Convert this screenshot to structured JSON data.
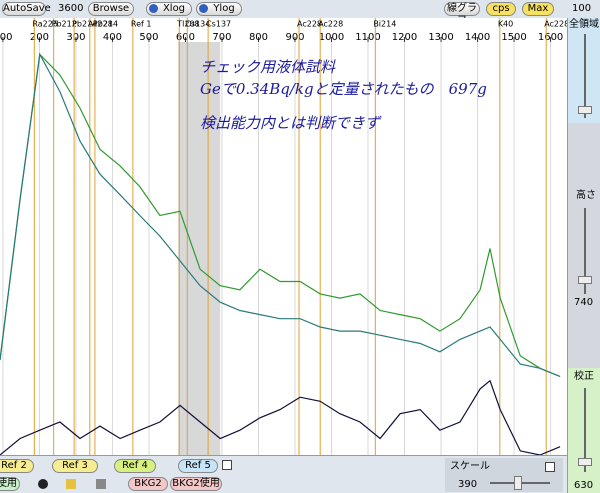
{
  "toolbar": {
    "autosave": "AutoSave",
    "time": 3600,
    "browse": "Browse",
    "xlog": "Xlog",
    "ylog": "Ylog",
    "line_graph": "線グラフ",
    "cps": "cps",
    "max": "Max",
    "max_value": 100
  },
  "chart_data": {
    "type": "line",
    "annotations": [
      "チェック用液体試料",
      "Geで0.34Bq/kgと定量されたもの　697g",
      "検出能力内とは判断できず"
    ],
    "x": [
      92,
      147,
      201,
      256,
      311,
      366,
      421,
      475,
      530,
      585,
      640,
      695,
      749,
      804,
      859,
      914,
      969,
      1023,
      1078,
      1133,
      1188,
      1243,
      1297,
      1352,
      1407,
      1434,
      1462,
      1517,
      1571,
      1626
    ],
    "xlim": [
      92,
      1645
    ],
    "xticks": [
      100,
      200,
      300,
      400,
      500,
      600,
      700,
      800,
      900,
      1000,
      1100,
      1200,
      1300,
      1400,
      1500,
      1600
    ],
    "ylim": [
      0,
      100
    ],
    "grid": true,
    "series": [
      {
        "color": "#2f9a2f",
        "values": [
          23,
          62,
          97,
          92,
          84,
          74,
          70,
          65,
          58,
          59,
          45,
          41,
          40,
          45,
          42,
          42,
          39,
          38,
          39,
          35,
          34,
          33,
          30,
          33,
          40,
          50,
          38,
          24,
          21,
          19
        ]
      },
      {
        "color": "#2a7a7a",
        "values": [
          23,
          62,
          97,
          88,
          76,
          68,
          63,
          58,
          53,
          47,
          41,
          37,
          35,
          34,
          33,
          33,
          31,
          30,
          30,
          29,
          28,
          27,
          25,
          28,
          30,
          31,
          28,
          22,
          21,
          19
        ]
      },
      {
        "color": "#10103a",
        "values": [
          0,
          4,
          6,
          8,
          4,
          7,
          4,
          6,
          8,
          12,
          8,
          4,
          6,
          9,
          11,
          14,
          13,
          10,
          8,
          4,
          10,
          11,
          6,
          8,
          16,
          18,
          11,
          1,
          0,
          2
        ]
      }
    ],
    "markers": [
      {
        "label": "Ra226",
        "energy": 186
      },
      {
        "label": "Pb212",
        "energy": 239
      },
      {
        "label": "Pb214",
        "energy": 295
      },
      {
        "label": "Ac228",
        "energy": 338
      },
      {
        "label": "Pb214",
        "energy": 352
      },
      {
        "label": "Ref 1",
        "energy": 456
      },
      {
        "label": "Tl208",
        "energy": 583
      },
      {
        "label": "Cs134",
        "energy": 605
      },
      {
        "label": "Cs137",
        "energy": 662
      },
      {
        "label": "Ac228",
        "energy": 911
      },
      {
        "label": "Ac228",
        "energy": 969
      },
      {
        "label": "Bi214",
        "energy": 1120
      },
      {
        "label": "K40",
        "energy": 1461
      },
      {
        "label": "Ac228",
        "energy": 1588
      }
    ],
    "marker_color": "#e0a030",
    "roi": [
      580,
      695
    ],
    "roi_color": "#c8c8c8"
  },
  "side_panel": {
    "full_range": "全領域",
    "height": "高さ",
    "height_value": 740,
    "calibration": "校正",
    "calibration_value": 630
  },
  "bottom_bar": {
    "refs": [
      "Ref 2",
      "Ref 3",
      "Ref 4",
      "Ref 5"
    ],
    "use": "使用",
    "bkg2": "BKG2",
    "bkg2_use": "BKG2使用",
    "scale": "スケール",
    "scale_value": 390
  }
}
